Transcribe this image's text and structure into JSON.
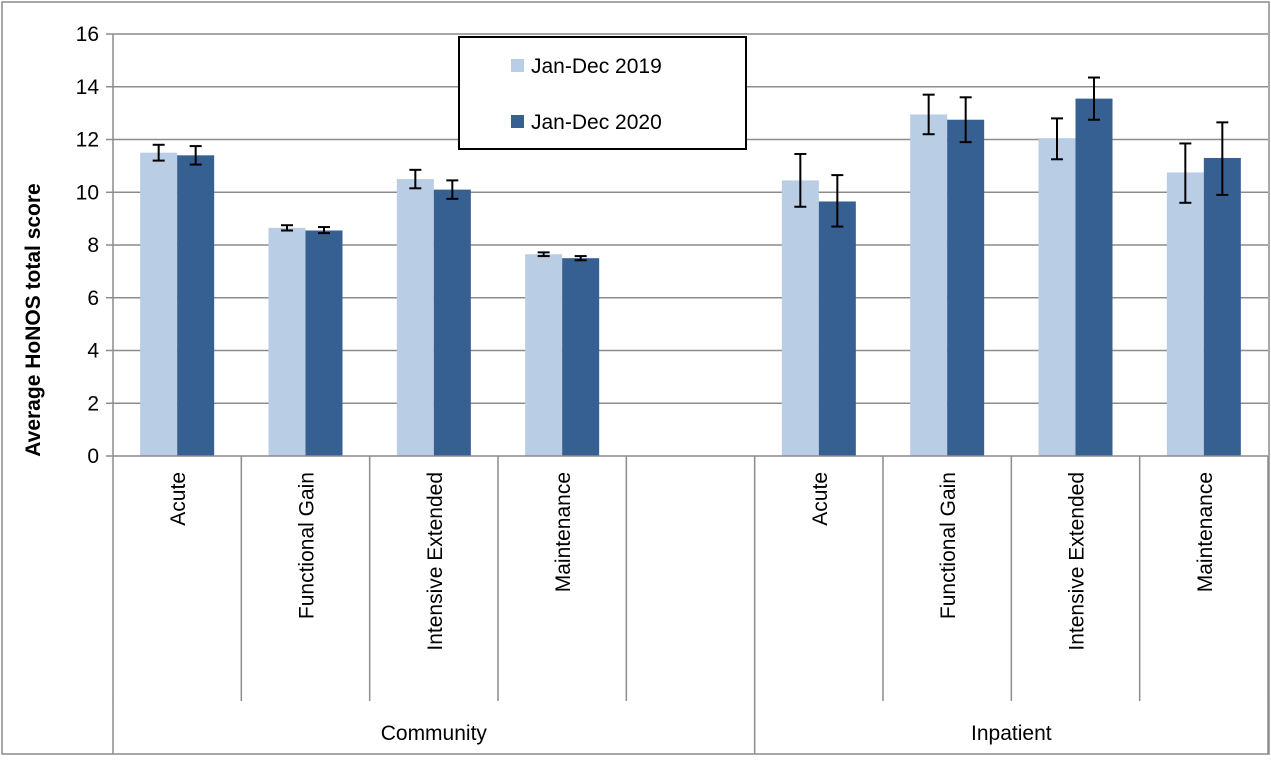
{
  "chart_data": {
    "type": "bar",
    "title": "",
    "xlabel": "",
    "ylabel": "Average HoNOS total score",
    "ylim": [
      0,
      16
    ],
    "yticks": [
      0,
      2,
      4,
      6,
      8,
      10,
      12,
      14,
      16
    ],
    "grid": true,
    "legend_position": "top-center",
    "colors": {
      "Jan-Dec 2019": "#b9cde5",
      "Jan-Dec 2020": "#366092"
    },
    "groups": [
      {
        "name": "Community",
        "categories": [
          "Acute",
          "Functional Gain",
          "Intensive Extended",
          "Maintenance",
          ""
        ]
      },
      {
        "name": "Inpatient",
        "categories": [
          "Acute",
          "Functional Gain",
          "Intensive Extended",
          "Maintenance"
        ]
      }
    ],
    "categories": [
      "Acute",
      "Functional Gain",
      "Intensive Extended",
      "Maintenance",
      "",
      "Acute",
      "Functional Gain",
      "Intensive Extended",
      "Maintenance"
    ],
    "series": [
      {
        "name": "Jan-Dec 2019",
        "values": [
          11.5,
          8.65,
          10.5,
          7.65,
          null,
          10.45,
          12.95,
          12.05,
          10.75
        ],
        "error_low": [
          11.2,
          8.55,
          10.15,
          7.58,
          null,
          9.45,
          12.2,
          11.25,
          9.6
        ],
        "error_high": [
          11.8,
          8.75,
          10.85,
          7.72,
          null,
          11.45,
          13.7,
          12.8,
          11.85
        ]
      },
      {
        "name": "Jan-Dec 2020",
        "values": [
          11.4,
          8.55,
          10.1,
          7.5,
          null,
          9.65,
          12.75,
          13.55,
          11.3
        ],
        "error_low": [
          11.05,
          8.45,
          9.75,
          7.42,
          null,
          8.7,
          11.9,
          12.75,
          9.9
        ],
        "error_high": [
          11.75,
          8.68,
          10.45,
          7.58,
          null,
          10.65,
          13.6,
          14.35,
          12.65
        ]
      }
    ]
  }
}
